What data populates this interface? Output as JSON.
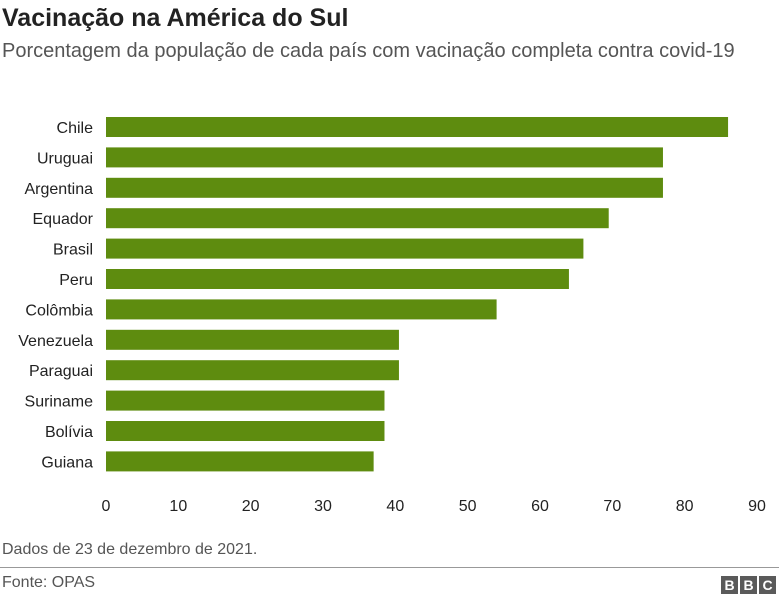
{
  "title": "Vacinação na América do Sul",
  "subtitle": "Porcentagem da população de cada país com vacinação completa contra covid-19",
  "footnote": "Dados de 23 de dezembro de 2021.",
  "source": "Fonte: OPAS",
  "logo_letters": [
    "B",
    "B",
    "C"
  ],
  "colors": {
    "bar": "#5e8c0f",
    "text": "#222222",
    "muted": "#555555"
  },
  "chart_data": {
    "type": "bar",
    "orientation": "horizontal",
    "categories": [
      "Chile",
      "Uruguai",
      "Argentina",
      "Equador",
      "Brasil",
      "Peru",
      "Colômbia",
      "Venezuela",
      "Paraguai",
      "Suriname",
      "Bolívia",
      "Guiana"
    ],
    "values": [
      86,
      77,
      77,
      69.5,
      66,
      64,
      54,
      40.5,
      40.5,
      38.5,
      38.5,
      37
    ],
    "xlim": [
      0,
      90
    ],
    "xticks": [
      0,
      10,
      20,
      30,
      40,
      50,
      60,
      70,
      80,
      90
    ],
    "grid": false
  }
}
